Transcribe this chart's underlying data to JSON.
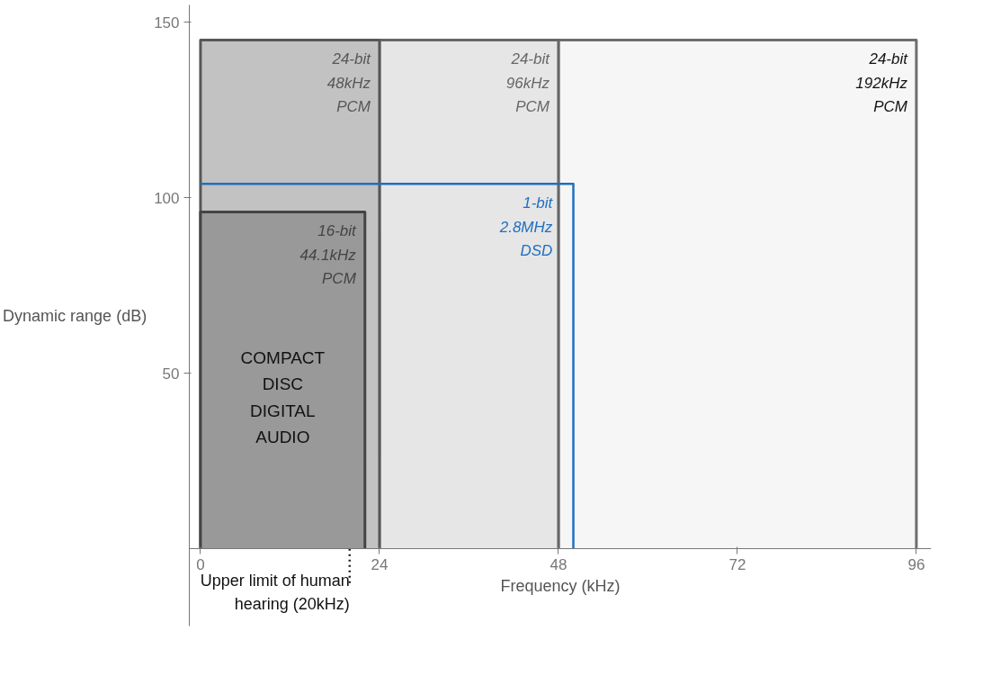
{
  "chart_data": {
    "type": "area",
    "xlabel": "Frequency (kHz)",
    "ylabel": "Dynamic range (dB)",
    "xlim": [
      -1.5,
      98
    ],
    "ylim": [
      -22,
      155
    ],
    "xticks": [
      0,
      24,
      48,
      72,
      96
    ],
    "yticks": [
      50,
      100,
      150
    ],
    "grid": false,
    "series": [
      {
        "name": "24-bit\n192kHz\nPCM",
        "color": "#f6f6f6",
        "x": [
          48,
          96
        ],
        "values": [
          145,
          145
        ]
      },
      {
        "name": "24-bit\n96kHz\nPCM",
        "color": "#e6e6e6",
        "x": [
          24,
          48
        ],
        "values": [
          145,
          145
        ]
      },
      {
        "name": "24-bit\n48kHz\nPCM",
        "color": "#c2c2c2",
        "x": [
          0,
          24
        ],
        "values": [
          145,
          145
        ]
      },
      {
        "name": "16-bit\n44.1kHz\nPCM",
        "color": "#999999",
        "x": [
          0,
          22.05
        ],
        "values": [
          96,
          96
        ]
      },
      {
        "name": "1-bit\n2.8MHz\nDSD",
        "type": "line",
        "color": "#1f6fc0",
        "x": [
          0,
          50,
          50
        ],
        "values": [
          104,
          104,
          0
        ]
      }
    ],
    "annotations": [
      "COMPACT\nDISC\nDIGITAL\nAUDIO"
    ],
    "ref_lines": [
      {
        "axis": "x",
        "value": 20,
        "label": "Upper limit of human\nhearing (20kHz)",
        "line_style": "dotted"
      }
    ]
  }
}
